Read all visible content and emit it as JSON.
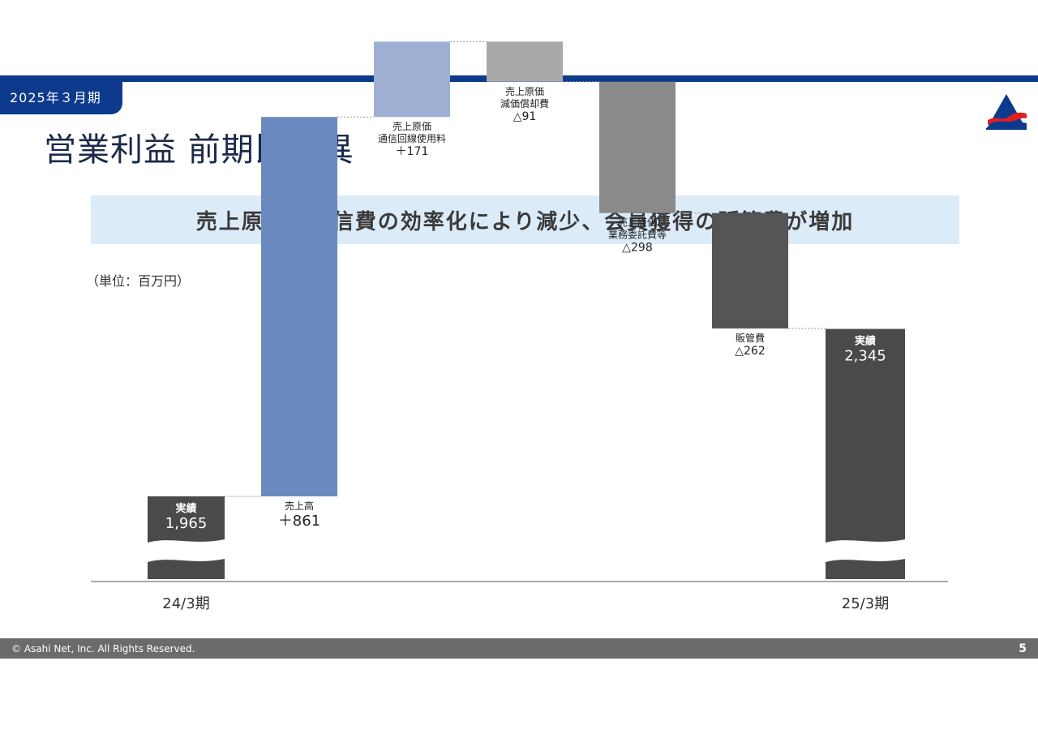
{
  "header": {
    "period_tab": "2025年３月期",
    "title": "営業利益 前期比差異",
    "summary": "売上原価は通信費の効率化により減少、会員獲得の販管費が増加"
  },
  "unit_label": "（単位：百万円）",
  "colors": {
    "navy": "#0d3a8c",
    "actual": "#4a4a4a",
    "sales": "#6a8abf",
    "cost_comm": "#9db0d4",
    "cost_depr": "#a9a9a9",
    "cost_outsource": "#8a8a8a",
    "sga": "#555555"
  },
  "chart_data": {
    "type": "waterfall",
    "unit": "百万円",
    "steps": [
      {
        "id": "start",
        "kind": "total",
        "label_lines": [
          "実績"
        ],
        "value_label": "1,965",
        "value": 1965,
        "axis_label": "24/3期",
        "color": "#4a4a4a"
      },
      {
        "id": "sales",
        "kind": "delta",
        "label_lines": [
          "売上高"
        ],
        "value_label": "＋861",
        "value": 861,
        "color": "#6a8abf"
      },
      {
        "id": "cost_comm",
        "kind": "delta",
        "label_lines": [
          "売上原価",
          "通信回線使用料"
        ],
        "value_label": "＋171",
        "value": 171,
        "color": "#9db0d4"
      },
      {
        "id": "cost_depr",
        "kind": "delta",
        "label_lines": [
          "売上原価",
          "減価償却費"
        ],
        "value_label": "△91",
        "value": -91,
        "color": "#a9a9a9"
      },
      {
        "id": "cost_outsource",
        "kind": "delta",
        "label_lines": [
          "売上原価",
          "業務委託費等"
        ],
        "value_label": "△298",
        "value": -298,
        "color": "#8a8a8a"
      },
      {
        "id": "sga",
        "kind": "delta",
        "label_lines": [
          "販管費"
        ],
        "value_label": "△262",
        "value": -262,
        "color": "#555555"
      },
      {
        "id": "end",
        "kind": "total",
        "label_lines": [
          "実績"
        ],
        "value_label": "2,345",
        "value": 2345,
        "axis_label": "25/3期",
        "color": "#4a4a4a"
      }
    ]
  },
  "footer": {
    "copyright": "© Asahi Net, Inc. All Rights Reserved.",
    "page_number": "5"
  }
}
